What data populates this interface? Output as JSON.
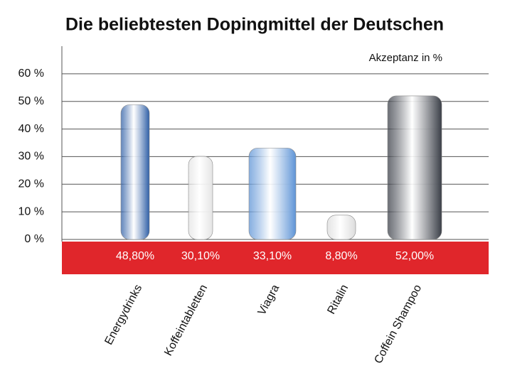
{
  "chart_data": {
    "type": "bar",
    "title": "Die beliebtesten Dopingmittel der Deutschen",
    "subtitle": "Akzeptanz in %",
    "categories": [
      "Energydrinks",
      "Koffeintabletten",
      "Viagra",
      "Ritalin",
      "Coffein Shampoo"
    ],
    "values": [
      48.8,
      30.1,
      33.1,
      8.8,
      52.0
    ],
    "value_labels": [
      "48,80%",
      "30,10%",
      "33,10%",
      "8,80%",
      "52,00%"
    ],
    "colors": [
      "#2f5fa6",
      "#e4e4e4",
      "#5e94d6",
      "#dcdcdc",
      "#3a3e47"
    ],
    "band_color": "#e0262b",
    "ylim": [
      0,
      70
    ],
    "yticks": [
      {
        "value": 0,
        "label": "0 %"
      },
      {
        "value": 10,
        "label": "10 %"
      },
      {
        "value": 20,
        "label": "20 %"
      },
      {
        "value": 30,
        "label": "30 %"
      },
      {
        "value": 40,
        "label": "40 %"
      },
      {
        "value": 50,
        "label": "50 %"
      },
      {
        "value": 60,
        "label": "60 %"
      }
    ],
    "grid": true
  }
}
